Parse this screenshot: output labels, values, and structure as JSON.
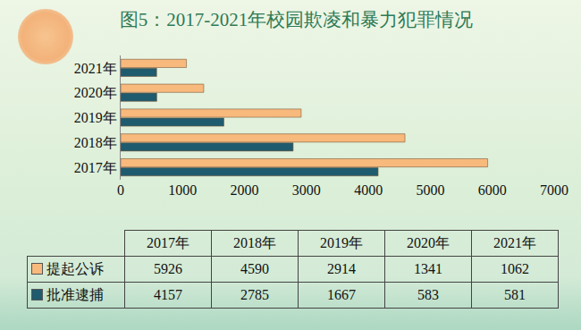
{
  "chart_data": {
    "type": "bar",
    "orientation": "horizontal",
    "title": "图5：2017-2021年校园欺凌和暴力犯罪情况",
    "categories": [
      "2017年",
      "2018年",
      "2019年",
      "2020年",
      "2021年"
    ],
    "series": [
      {
        "name": "提起公诉",
        "color": "#f8b97c",
        "values": [
          5926,
          4590,
          2914,
          1341,
          1062
        ]
      },
      {
        "name": "批准逮捕",
        "color": "#1f5b6e",
        "values": [
          4157,
          2785,
          1667,
          583,
          581
        ]
      }
    ],
    "xlim": [
      0,
      7000
    ],
    "xticks": [
      0,
      1000,
      2000,
      3000,
      4000,
      5000,
      6000,
      7000
    ],
    "grid": false,
    "data_labels": false
  }
}
